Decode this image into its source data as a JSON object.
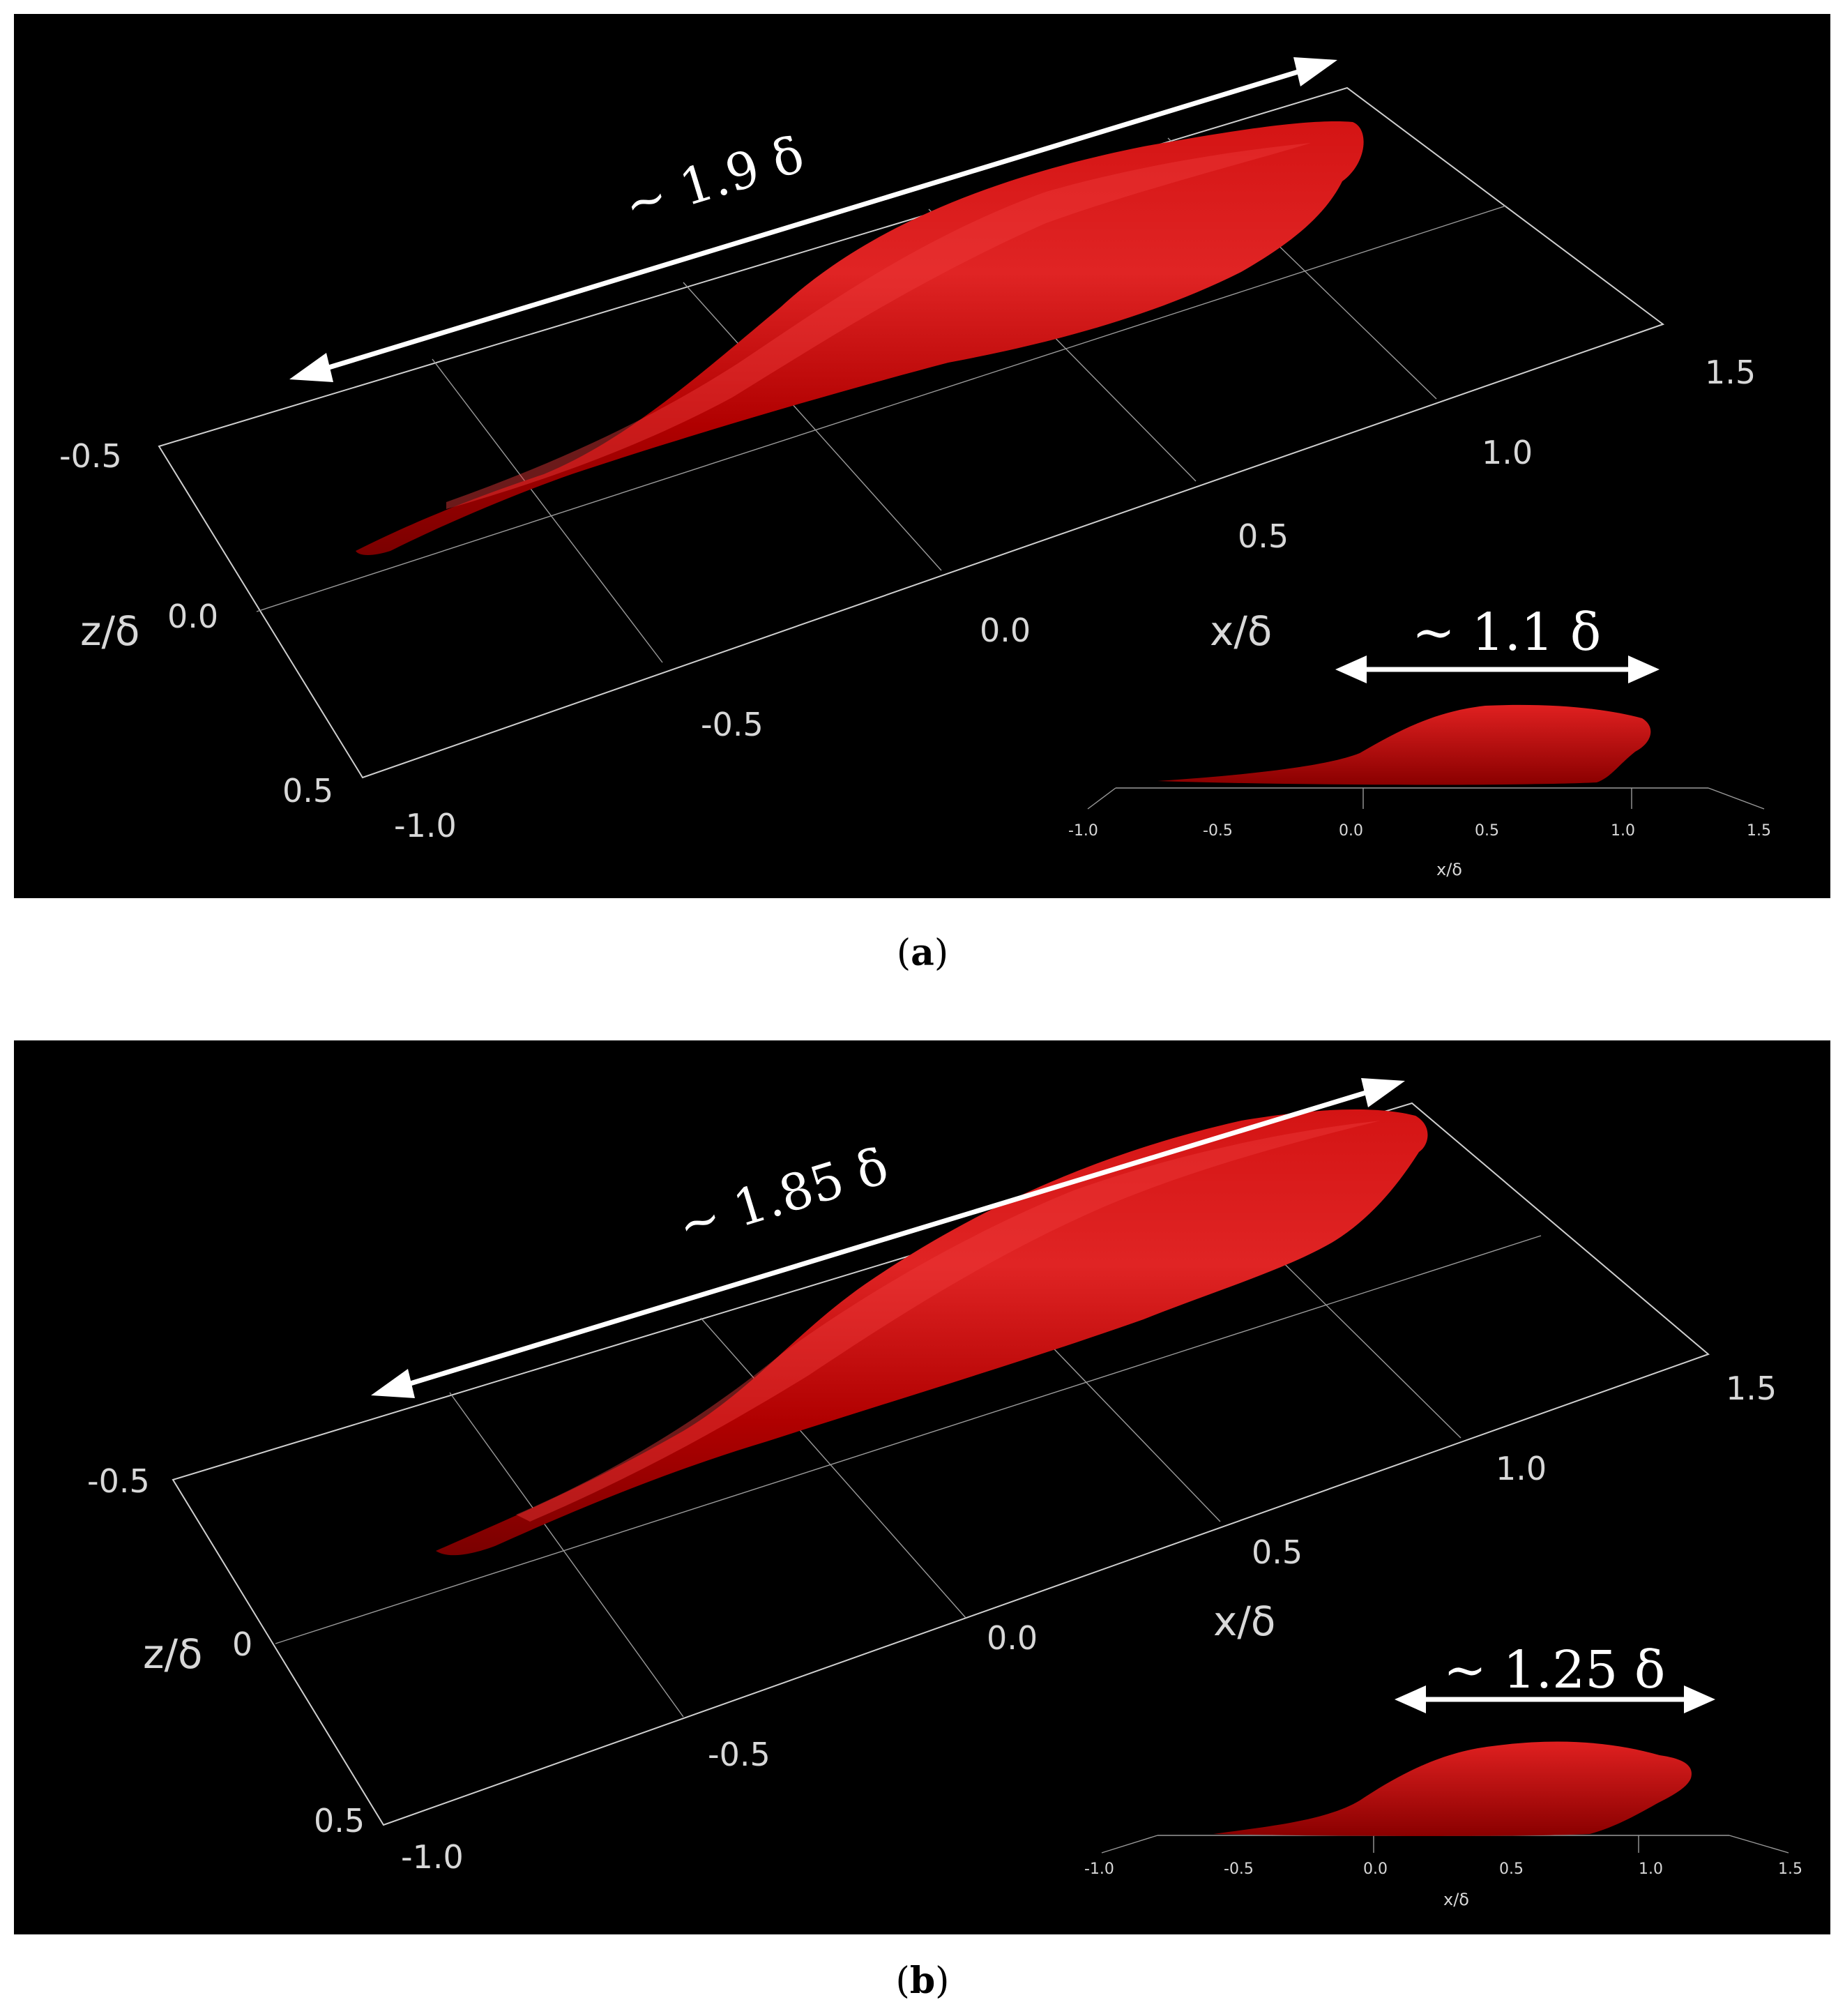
{
  "figure": {
    "panel_a": {
      "caption_label": "a",
      "main_annotation": "~ 1.9 δ",
      "inset_annotation": "~ 1.1 δ",
      "z_label": "z/δ",
      "x_label": "x/δ",
      "z_ticks": [
        "-0.5",
        "0.0",
        "0.5"
      ],
      "x_ticks": [
        "-1.0",
        "-0.5",
        "0.0",
        "0.5",
        "1.0",
        "1.5"
      ],
      "inset_x_ticks": [
        "-1.0",
        "-0.5",
        "0.0",
        "0.5",
        "1.0",
        "1.5"
      ],
      "inset_x_label": "x/δ"
    },
    "panel_b": {
      "caption_label": "b",
      "main_annotation": "~ 1.85 δ",
      "inset_annotation": "~ 1.25 δ",
      "z_label": "z/δ",
      "x_label": "x/δ",
      "z_ticks": [
        "-0.5",
        "0",
        "0.5"
      ],
      "x_ticks": [
        "-1.0",
        "-0.5",
        "0.0",
        "0.5",
        "1.0",
        "1.5"
      ],
      "inset_x_ticks": [
        "-1.0",
        "-0.5",
        "0.0",
        "0.5",
        "1.0",
        "1.5"
      ],
      "inset_x_label": "x/δ"
    },
    "colors": {
      "background": "#000000",
      "structure": "#c00000",
      "structure_highlight": "#e83030",
      "grid": "#cfcfcf",
      "annotation": "#ffffff"
    }
  }
}
